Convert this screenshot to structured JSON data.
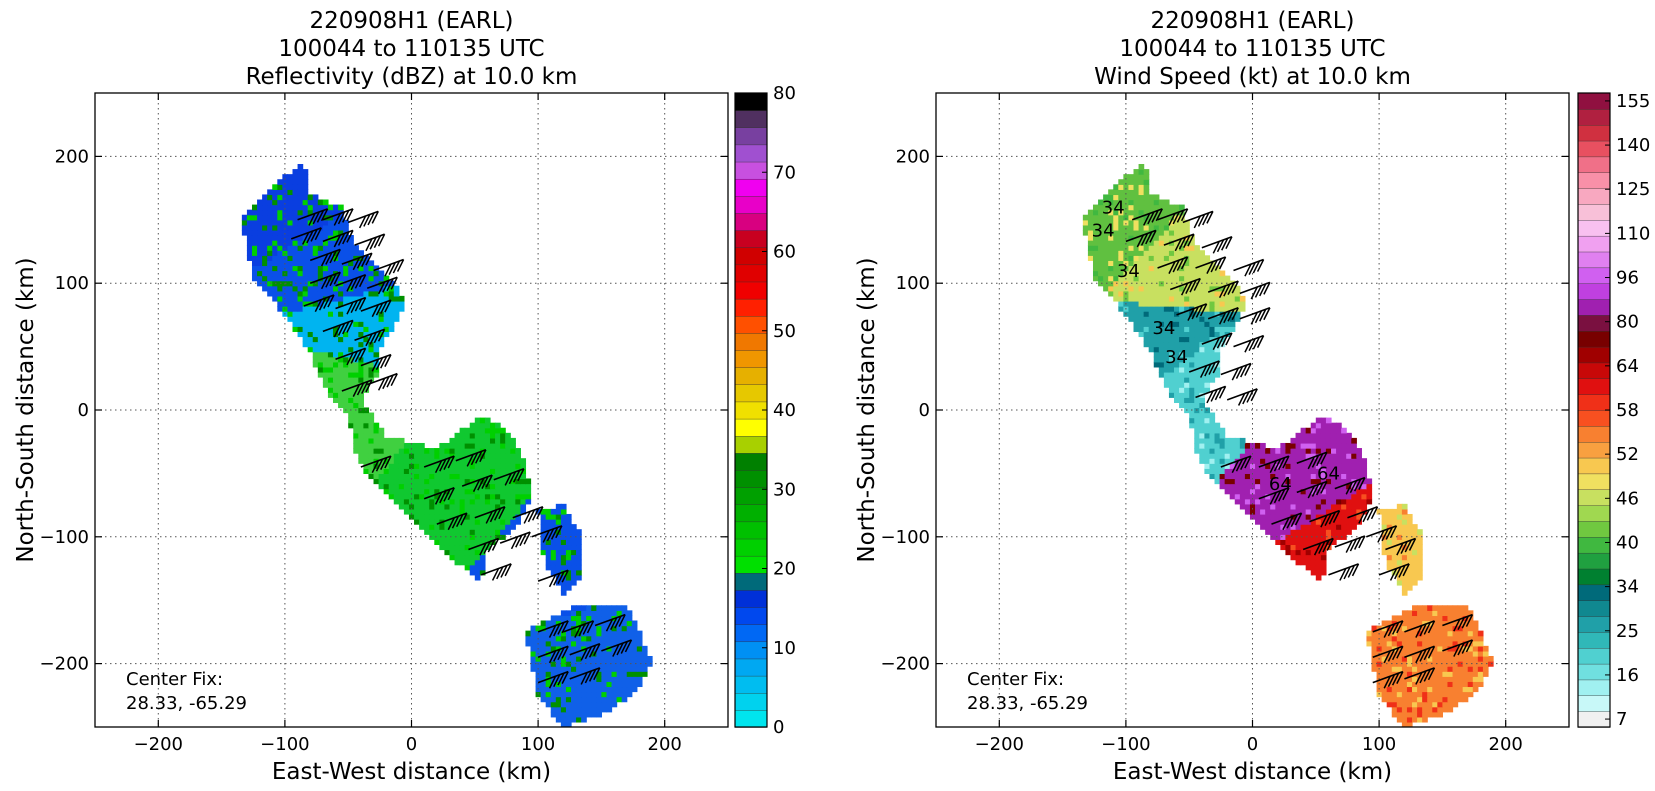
{
  "chart_data": [
    {
      "type": "heatmap",
      "title_lines": [
        "220908H1 (EARL)",
        "100044 to 110135 UTC",
        "Reflectivity (dBZ) at 10.0 km"
      ],
      "xlabel": "East-West distance (km)",
      "ylabel": "North-South distance (km)",
      "xlim": [
        -250,
        250
      ],
      "ylim": [
        -250,
        250
      ],
      "xticks": [
        -200,
        -100,
        0,
        100,
        200
      ],
      "yticks": [
        -200,
        -100,
        0,
        100,
        200
      ],
      "xtick_labels": [
        "−200",
        "−100",
        "0",
        "100",
        "200"
      ],
      "ytick_labels": [
        "−200",
        "−100",
        "0",
        "100",
        "200"
      ],
      "grid": true,
      "annotation_lines": [
        "Center Fix:",
        "28.33, -65.29"
      ],
      "colorbar": {
        "min": 0,
        "max": 80,
        "label_values": [
          0,
          10,
          20,
          30,
          40,
          50,
          60,
          70,
          80
        ],
        "colors": [
          "#00e5ee",
          "#00d2ee",
          "#00bdf0",
          "#00a8f2",
          "#0090f4",
          "#0068f4",
          "#0048ee",
          "#0030d8",
          "#006a7a",
          "#00e000",
          "#00d000",
          "#00c000",
          "#00b000",
          "#00a000",
          "#009000",
          "#008000",
          "#a8d000",
          "#ffff00",
          "#f0e000",
          "#e6c800",
          "#e6b000",
          "#f09600",
          "#f07800",
          "#ff5000",
          "#ff2000",
          "#f00000",
          "#e00000",
          "#d00000",
          "#c80020",
          "#d80080",
          "#e800c8",
          "#f000f0",
          "#c850e0",
          "#a050d0",
          "#7840a0",
          "#503060",
          "#000000"
        ]
      },
      "features": {
        "echo_bands": [
          {
            "x": -85,
            "y": 170,
            "color": "#0a3ee0"
          },
          {
            "x": -55,
            "y": 120,
            "color": "#0a50e8"
          },
          {
            "x": -40,
            "y": 60,
            "color": "#00b4f0"
          },
          {
            "x": -50,
            "y": 20,
            "color": "#40d040"
          },
          {
            "x": 50,
            "y": -60,
            "color": "#10c830"
          },
          {
            "x": 110,
            "y": -110,
            "color": "#0a50e8"
          },
          {
            "x": 140,
            "y": -210,
            "color": "#1060e8"
          }
        ]
      },
      "barbs": [
        {
          "x": -90,
          "y": 150
        },
        {
          "x": -70,
          "y": 150
        },
        {
          "x": -50,
          "y": 148
        },
        {
          "x": -95,
          "y": 135
        },
        {
          "x": -70,
          "y": 133
        },
        {
          "x": -45,
          "y": 130
        },
        {
          "x": -80,
          "y": 118
        },
        {
          "x": -55,
          "y": 115
        },
        {
          "x": -30,
          "y": 110
        },
        {
          "x": -80,
          "y": 100
        },
        {
          "x": -60,
          "y": 98
        },
        {
          "x": -35,
          "y": 96
        },
        {
          "x": -85,
          "y": 82
        },
        {
          "x": -60,
          "y": 80
        },
        {
          "x": -40,
          "y": 78
        },
        {
          "x": -70,
          "y": 62
        },
        {
          "x": -45,
          "y": 55
        },
        {
          "x": -60,
          "y": 40
        },
        {
          "x": -40,
          "y": 35
        },
        {
          "x": -55,
          "y": 15
        },
        {
          "x": -35,
          "y": 20
        },
        {
          "x": -40,
          "y": -45
        },
        {
          "x": 10,
          "y": -45
        },
        {
          "x": 35,
          "y": -40
        },
        {
          "x": 10,
          "y": -70
        },
        {
          "x": 40,
          "y": -60
        },
        {
          "x": 65,
          "y": -55
        },
        {
          "x": 20,
          "y": -90
        },
        {
          "x": 50,
          "y": -85
        },
        {
          "x": 80,
          "y": -85
        },
        {
          "x": 45,
          "y": -110
        },
        {
          "x": 70,
          "y": -105
        },
        {
          "x": 95,
          "y": -100
        },
        {
          "x": 55,
          "y": -130
        },
        {
          "x": 100,
          "y": -135
        },
        {
          "x": 100,
          "y": -175
        },
        {
          "x": 120,
          "y": -175
        },
        {
          "x": 145,
          "y": -170
        },
        {
          "x": 100,
          "y": -195
        },
        {
          "x": 125,
          "y": -193
        },
        {
          "x": 150,
          "y": -190
        },
        {
          "x": 100,
          "y": -215
        },
        {
          "x": 125,
          "y": -212
        }
      ]
    },
    {
      "type": "heatmap",
      "title_lines": [
        "220908H1 (EARL)",
        "100044 to 110135 UTC",
        "Wind Speed (kt) at 10.0 km"
      ],
      "xlabel": "East-West distance (km)",
      "ylabel": "North-South distance (km)",
      "xlim": [
        -250,
        250
      ],
      "ylim": [
        -250,
        250
      ],
      "xticks": [
        -200,
        -100,
        0,
        100,
        200
      ],
      "yticks": [
        -200,
        -100,
        0,
        100,
        200
      ],
      "xtick_labels": [
        "−200",
        "−100",
        "0",
        "100",
        "200"
      ],
      "ytick_labels": [
        "−200",
        "−100",
        "0",
        "100",
        "200"
      ],
      "grid": true,
      "annotation_lines": [
        "Center Fix:",
        "28.33, -65.29"
      ],
      "contour_labels": [
        {
          "x": -110,
          "y": 155,
          "text": "34"
        },
        {
          "x": -118,
          "y": 137,
          "text": "34"
        },
        {
          "x": -98,
          "y": 105,
          "text": "34"
        },
        {
          "x": -70,
          "y": 60,
          "text": "34"
        },
        {
          "x": -60,
          "y": 37,
          "text": "34"
        },
        {
          "x": 22,
          "y": -63,
          "text": "64"
        },
        {
          "x": 60,
          "y": -55,
          "text": "64"
        }
      ],
      "colorbar": {
        "label_values": [
          "7",
          "16",
          "25",
          "34",
          "40",
          "46",
          "52",
          "58",
          "64",
          "80",
          "96",
          "110",
          "125",
          "140",
          "155"
        ],
        "colors": [
          "#f0f0f0",
          "#c8f8f8",
          "#a0f0f0",
          "#70e0e0",
          "#50d0d0",
          "#30b8b8",
          "#20a0a8",
          "#108890",
          "#006a7a",
          "#008030",
          "#20a040",
          "#40b840",
          "#70c840",
          "#a0d850",
          "#c8e060",
          "#f0e060",
          "#f8c850",
          "#f8a040",
          "#f88030",
          "#f85020",
          "#f03018",
          "#e01010",
          "#c80808",
          "#a00000",
          "#780000",
          "#7a1040",
          "#a020b0",
          "#c040e0",
          "#d060f0",
          "#e080f0",
          "#f0a0f0",
          "#f8c0f0",
          "#f8c0d8",
          "#f8a8c0",
          "#f890a8",
          "#f07088",
          "#e85060",
          "#d03040",
          "#b02040",
          "#901040"
        ]
      },
      "features": {
        "speed_bands": [
          {
            "x": -100,
            "y": 140,
            "color": "#60c040"
          },
          {
            "x": -70,
            "y": 110,
            "color": "#c8e060"
          },
          {
            "x": -75,
            "y": 55,
            "color": "#20a0a8"
          },
          {
            "x": -45,
            "y": 15,
            "color": "#50d0d0"
          },
          {
            "x": 45,
            "y": -60,
            "color": "#a020b0"
          },
          {
            "x": 70,
            "y": -100,
            "color": "#e01010"
          },
          {
            "x": 115,
            "y": -110,
            "color": "#f8c850"
          },
          {
            "x": 130,
            "y": -195,
            "color": "#f88030"
          }
        ]
      },
      "barbs": [
        {
          "x": -95,
          "y": 150
        },
        {
          "x": -75,
          "y": 150
        },
        {
          "x": -55,
          "y": 148
        },
        {
          "x": -100,
          "y": 133
        },
        {
          "x": -70,
          "y": 130
        },
        {
          "x": -40,
          "y": 128
        },
        {
          "x": -75,
          "y": 112
        },
        {
          "x": -45,
          "y": 112
        },
        {
          "x": -15,
          "y": 110
        },
        {
          "x": -65,
          "y": 95
        },
        {
          "x": -35,
          "y": 93
        },
        {
          "x": -10,
          "y": 92
        },
        {
          "x": -60,
          "y": 75
        },
        {
          "x": -35,
          "y": 72
        },
        {
          "x": -10,
          "y": 72
        },
        {
          "x": -40,
          "y": 52
        },
        {
          "x": -15,
          "y": 50
        },
        {
          "x": -50,
          "y": 30
        },
        {
          "x": -25,
          "y": 28
        },
        {
          "x": -45,
          "y": 10
        },
        {
          "x": -20,
          "y": 8
        },
        {
          "x": -25,
          "y": -45
        },
        {
          "x": 5,
          "y": -45
        },
        {
          "x": 35,
          "y": -42
        },
        {
          "x": 5,
          "y": -70
        },
        {
          "x": 35,
          "y": -65
        },
        {
          "x": 65,
          "y": -62
        },
        {
          "x": 15,
          "y": -90
        },
        {
          "x": 45,
          "y": -88
        },
        {
          "x": 75,
          "y": -85
        },
        {
          "x": 40,
          "y": -110
        },
        {
          "x": 65,
          "y": -108
        },
        {
          "x": 90,
          "y": -100
        },
        {
          "x": 60,
          "y": -130
        },
        {
          "x": 100,
          "y": -130
        },
        {
          "x": 105,
          "y": -110
        },
        {
          "x": 95,
          "y": -175
        },
        {
          "x": 120,
          "y": -175
        },
        {
          "x": 150,
          "y": -170
        },
        {
          "x": 95,
          "y": -195
        },
        {
          "x": 120,
          "y": -195
        },
        {
          "x": 150,
          "y": -190
        },
        {
          "x": 95,
          "y": -215
        },
        {
          "x": 120,
          "y": -212
        }
      ]
    }
  ]
}
